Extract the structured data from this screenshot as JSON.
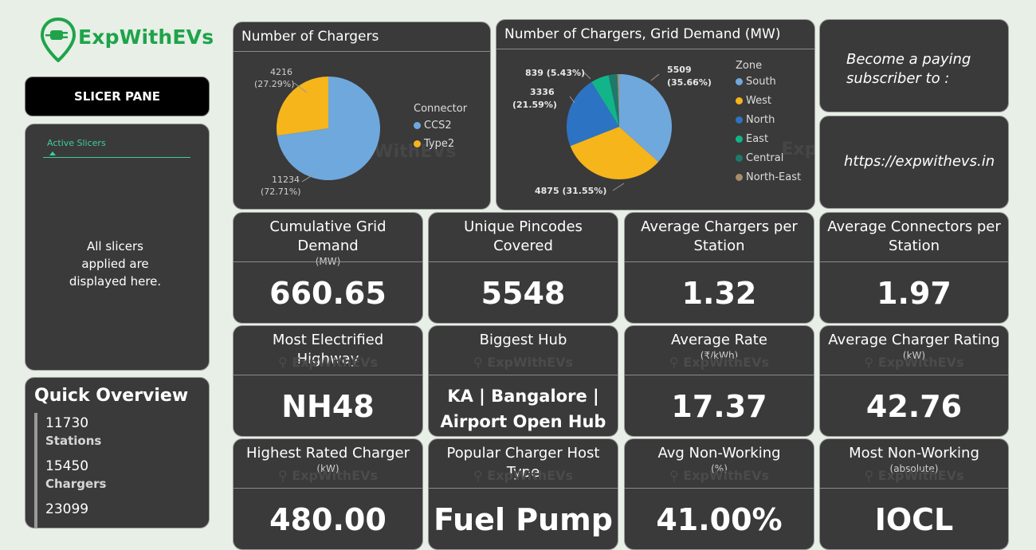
{
  "brand": {
    "name": "ExpWithEVs",
    "color": "#1fa34a"
  },
  "slicer": {
    "button_label": "SLICER PANE",
    "active_tab": "Active Slicers",
    "message": "All slicers applied are displayed here."
  },
  "overview": {
    "title": "Quick Overview",
    "items": [
      {
        "value": "11730",
        "label": "Stations"
      },
      {
        "value": "15450",
        "label": "Chargers"
      },
      {
        "value": "23099",
        "label": ""
      }
    ]
  },
  "chart_data": [
    {
      "type": "pie",
      "title": "Number of Chargers",
      "legend_title": "Connector",
      "slices": [
        {
          "name": "CCS2",
          "value": 11234,
          "pct": "72.71%",
          "color": "#6fa8dc"
        },
        {
          "name": "Type2",
          "value": 4216,
          "pct": "27.29%",
          "color": "#f5b51b"
        }
      ]
    },
    {
      "type": "pie",
      "title": "Number of Chargers, Grid Demand (MW)",
      "legend_title": "Zone",
      "slices": [
        {
          "name": "South",
          "value": 5509,
          "pct": "35.66%",
          "color": "#6fa8dc"
        },
        {
          "name": "West",
          "value": 4875,
          "pct": "31.55%",
          "color": "#f5b51b"
        },
        {
          "name": "North",
          "value": 3336,
          "pct": "21.59%",
          "color": "#2d73c4"
        },
        {
          "name": "East",
          "value": 839,
          "pct": "5.43%",
          "color": "#12b58a"
        },
        {
          "name": "Central",
          "value": 400,
          "pct": "",
          "color": "#1d7a6b"
        },
        {
          "name": "North-East",
          "value": 90,
          "pct": "",
          "color": "#a98b6d"
        }
      ]
    }
  ],
  "info": {
    "subscribe": "Become a paying subscriber to :",
    "url": "https://expwithevs.in"
  },
  "kpis": [
    {
      "title": "Cumulative Grid Demand",
      "unit": "(MW)",
      "value": "660.65"
    },
    {
      "title": "Unique Pincodes Covered",
      "unit": "",
      "value": "5548"
    },
    {
      "title": "Average Chargers per Station",
      "unit": "",
      "value": "1.32"
    },
    {
      "title": "Average Connectors per Station",
      "unit": "",
      "value": "1.97"
    },
    {
      "title": "Most Electrified Highway",
      "unit": "",
      "value": "NH48"
    },
    {
      "title": "Biggest Hub",
      "unit": "",
      "value": "KA | Bangalore | Airport Open Hub"
    },
    {
      "title": "Average Rate",
      "unit": "(₹/kWh)",
      "value": "17.37"
    },
    {
      "title": "Average Charger Rating",
      "unit": "(kW)",
      "value": "42.76"
    },
    {
      "title": "Highest Rated Charger",
      "unit": "(kW)",
      "value": "480.00"
    },
    {
      "title": "Popular Charger Host Type",
      "unit": "",
      "value": "Fuel Pump"
    },
    {
      "title": "Avg Non-Working",
      "unit": "(%)",
      "value": "41.00%"
    },
    {
      "title": "Most Non-Working",
      "unit": "(absolute)",
      "value": "IOCL"
    }
  ]
}
